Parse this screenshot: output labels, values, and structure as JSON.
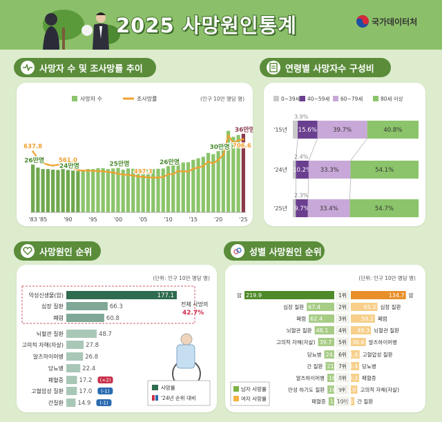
{
  "page": {
    "title": "2025 사망원인통계",
    "org": "국가데이터처",
    "sections": {
      "trend": "사망자 수 및 조사망률 추이",
      "age": "연령별 사망자수 구성비",
      "rank": "사망원인 순위",
      "gender": "성별 사망원인 순위"
    }
  },
  "colors": {
    "header_bg": "#8cbf6a",
    "section_bar": "#5a8c3a",
    "bar_green": "#8bc46a",
    "line_orange": "#f0a030",
    "bar_dark_red": "#8b3a4a",
    "purple_dark": "#6b3f8f",
    "purple_light": "#c8a8d8",
    "male_green": "#7cb342",
    "female_orange": "#f5b342"
  },
  "chart_data": [
    {
      "type": "bar",
      "title": "사망자 수 및 조사망률 추이",
      "unit_note": "(인구 10만 명당 명)",
      "legend": [
        "사망자 수",
        "조사망률"
      ],
      "x": [
        "'83",
        "'84",
        "'85",
        "'86",
        "'87",
        "'88",
        "'89",
        "'90",
        "'91",
        "'92",
        "'93",
        "'94",
        "'95",
        "'96",
        "'97",
        "'98",
        "'99",
        "'00",
        "'01",
        "'02",
        "'03",
        "'04",
        "'05",
        "'06",
        "'07",
        "'08",
        "'09",
        "'10",
        "'11",
        "'12",
        "'13",
        "'14",
        "'15",
        "'16",
        "'17",
        "'18",
        "'19",
        "'20",
        "'21",
        "'22",
        "'23",
        "'24",
        "'25"
      ],
      "tick_labels": [
        "'83",
        "'85",
        "'90",
        "'95",
        "'00",
        "'05",
        "'10",
        "'15",
        "'20",
        "'25"
      ],
      "series": [
        {
          "name": "사망자 수",
          "unit": "만명",
          "values": [
            26,
            25,
            24.5,
            24.5,
            24.3,
            24.2,
            24.5,
            24.2,
            24,
            23.8,
            24,
            24.5,
            24.5,
            24.8,
            24.8,
            24.5,
            24.7,
            24.9,
            24.3,
            24.7,
            24.6,
            24.6,
            24.4,
            24.3,
            24.5,
            24.6,
            24.7,
            25.5,
            25.8,
            26.7,
            26.7,
            26.8,
            27.6,
            28.1,
            28.6,
            29.9,
            29.5,
            30.5,
            31.8,
            37.3,
            35.3,
            35.9,
            36.3
          ]
        },
        {
          "name": "조사망률",
          "unit": "인구 10만 명당 명",
          "values": [
            637.8,
            600,
            575,
            565,
            560,
            565,
            561,
            561,
            545,
            535,
            532,
            533,
            530,
            530,
            528,
            525,
            522,
            515,
            510,
            508,
            505,
            500,
            497.3,
            495,
            493,
            494,
            496,
            512,
            513,
            530,
            528,
            527,
            542,
            550,
            557,
            582,
            572,
            593,
            619,
            727.6,
            686.7,
            700,
            706.6
          ]
        }
      ],
      "bar_labels": [
        {
          "x": "'83",
          "text": "26만명"
        },
        {
          "x": "'90",
          "text": "24만명"
        },
        {
          "x": "'00",
          "text": "25만명"
        },
        {
          "x": "'10",
          "text": "26만명"
        },
        {
          "x": "'20",
          "text": "30만명"
        },
        {
          "x": "'25",
          "text": "36만명"
        }
      ],
      "line_labels": [
        {
          "x": "'83",
          "text": "637.8"
        },
        {
          "x": "'90",
          "text": "561.0"
        },
        {
          "x": "'05",
          "text": "497.3"
        },
        {
          "x": "'25",
          "text": "706.6"
        }
      ]
    },
    {
      "type": "bar",
      "subtype": "stacked-horizontal-100",
      "title": "연령별 사망자수 구성비",
      "categories": [
        "'15년",
        "'24년",
        "'25년"
      ],
      "series": [
        {
          "name": "0~39세",
          "values": [
            3.9,
            2.4,
            2.3
          ]
        },
        {
          "name": "40~59세",
          "values": [
            15.6,
            10.2,
            9.7
          ]
        },
        {
          "name": "60~79세",
          "values": [
            39.7,
            33.3,
            33.4
          ]
        },
        {
          "name": "80세 이상",
          "values": [
            40.8,
            54.1,
            54.7
          ]
        }
      ],
      "value_labels": [
        [
          "3.9%",
          "15.6%",
          "39.7%",
          "40.8%"
        ],
        [
          "2.4%",
          "10.2%",
          "33.3%",
          "54.1%"
        ],
        [
          "2.3%",
          "9.7%",
          "33.4%",
          "54.7%"
        ]
      ]
    },
    {
      "type": "bar",
      "subtype": "horizontal",
      "title": "사망원인 순위",
      "unit_note": "(단위: 인구 10만 명당 명)",
      "categories": [
        "악성신생물(암)",
        "심장 질환",
        "폐렴",
        "뇌혈관 질환",
        "고의적 자해(자살)",
        "알츠하이머병",
        "당뇨병",
        "패혈증",
        "고혈압성 질환",
        "간질환"
      ],
      "values": [
        177.1,
        66.3,
        60.8,
        48.7,
        27.8,
        26.8,
        22.4,
        17.2,
        17.0,
        14.9
      ],
      "value_labels": [
        "177.1",
        "66.3",
        "60.8",
        "48.7",
        "27.8",
        "26.8",
        "22.4",
        "17.2",
        "17.0",
        "14.9"
      ],
      "rank_change_badges": [
        {
          "category": "패혈증",
          "text": "(+2)"
        },
        {
          "category": "고혈압성 질환",
          "text": "(-1)"
        },
        {
          "category": "간질환",
          "text": "(-1)"
        }
      ],
      "annotation": {
        "line1": "전체 사망의",
        "line2": "42.7%"
      },
      "legend": [
        "사망률",
        "'24년 순위 대비"
      ]
    },
    {
      "type": "bar",
      "subtype": "butterfly",
      "title": "성별 사망원인 순위",
      "unit_note_left": "(단위: 인구 10만 명당 명)",
      "unit_note_right": "(단위: 인구 10만 명당 명)",
      "ranks": [
        "1위",
        "2위",
        "3위",
        "4위",
        "5위",
        "6위",
        "7위",
        "8위",
        "9위",
        "10위"
      ],
      "series": [
        {
          "name": "남자 사망률",
          "categories": [
            "암",
            "심장 질환",
            "폐렴",
            "뇌혈관 질환",
            "고의적 자해(자살)",
            "당뇨병",
            "간 질환",
            "알츠하이머병",
            "만성 하기도 질환",
            "패혈증"
          ],
          "values": [
            219.9,
            67.4,
            62.4,
            48.1,
            39.7,
            24.5,
            21.2,
            16.9,
            16.7,
            13.9
          ],
          "value_labels": [
            "219.9",
            "67.4",
            "62.4",
            "48.1",
            "39.7",
            "24.5",
            "21.2",
            "16.9",
            "16.7",
            "13.9"
          ]
        },
        {
          "name": "여자 사망률",
          "categories": [
            "암",
            "심장 질환",
            "폐렴",
            "뇌혈관 질환",
            "알츠하이머병",
            "고혈압성 질환",
            "당뇨병",
            "패혈증",
            "고의적 자해(자살)",
            "간 질환"
          ],
          "values": [
            134.7,
            65.2,
            59.2,
            49.3,
            36.6,
            21.6,
            20.4,
            20.3,
            16.0,
            8.6
          ],
          "value_labels": [
            "134.7",
            "65.2",
            "59.2",
            "49.3",
            "36.6",
            "21.6",
            "20.4",
            "20.3",
            "16.0",
            "8.6"
          ]
        }
      ]
    }
  ]
}
